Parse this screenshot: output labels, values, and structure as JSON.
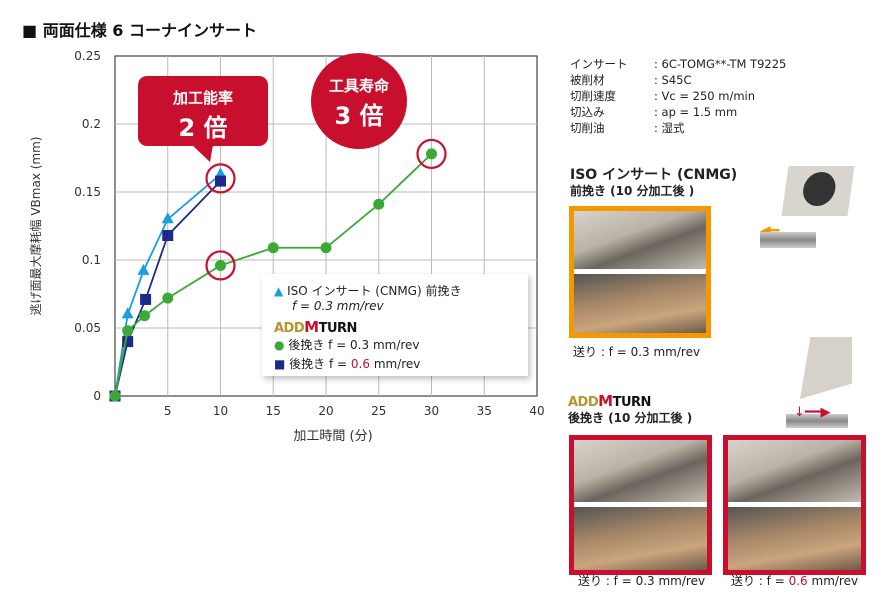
{
  "title": "■ 両面仕様 6 コーナインサート",
  "specs": [
    {
      "label": "インサート",
      "value": ": 6C-TOMG**-TM T9225"
    },
    {
      "label": "被削材",
      "value": ": S45C"
    },
    {
      "label": "切削速度",
      "value": ": Vc = 250 m/min"
    },
    {
      "label": "切込み",
      "value": ": ap = 1.5 mm"
    },
    {
      "label": "切削油",
      "value": ": 湿式"
    }
  ],
  "callouts": {
    "efficiency_label": "加工能率",
    "efficiency_value": "2 倍",
    "life_label": "工具寿命",
    "life_value": "3 倍"
  },
  "logo": {
    "text": "ADDMULTITURN",
    "part1": "ADD",
    "part2": "M",
    "part3": "TURN"
  },
  "legend": {
    "iso_line1": "ISO インサート (CNMG) 前挽き",
    "iso_line2": "f = 0.3 mm/rev",
    "back_prefix": "後挽き f = ",
    "back03_value": "0.3",
    "back06_value": "0.6",
    "unit": " mm/rev"
  },
  "right": {
    "iso_title": "ISO インサート (CNMG)",
    "iso_sub": "前挽き (10 分加工後 )",
    "iso_caption": "送り : f = 0.3 mm/rev",
    "add_sub": "後挽き (10 分加工後 )",
    "cap1": "送り : f = 0.3 mm/rev",
    "cap2_prefix": "送り : f = ",
    "cap2_value": "0.6",
    "cap2_unit": " mm/rev"
  },
  "colors": {
    "iso": "#1a9ee0",
    "back03": "#3aaa35",
    "back06": "#1d2a8a",
    "accent": "#c8102e",
    "photo_border": "#f39800"
  },
  "chart_data": {
    "type": "line",
    "xlabel": "加工時間 (分)",
    "ylabel": "逃げ面最大摩耗幅 VBmax (mm)",
    "xlim": [
      0,
      40
    ],
    "ylim": [
      0,
      0.25
    ],
    "xticks": [
      "5",
      "10",
      "15",
      "20",
      "25",
      "30",
      "35",
      "40"
    ],
    "yticks": [
      "0",
      "0.05",
      "0.1",
      "0.15",
      "0.2",
      "0.25"
    ],
    "grid": true,
    "legend_position": "bottom-right",
    "series": [
      {
        "name": "ISO インサート (CNMG) 前挽き f = 0.3 mm/rev",
        "marker": "triangle",
        "x": [
          0,
          1.2,
          2.7,
          5,
          10
        ],
        "y": [
          0,
          0.06,
          0.092,
          0.13,
          0.163
        ]
      },
      {
        "name": "後挽き f = 0.6 mm/rev",
        "marker": "square",
        "x": [
          0,
          1.2,
          2.9,
          5,
          10
        ],
        "y": [
          0,
          0.04,
          0.071,
          0.118,
          0.158
        ]
      },
      {
        "name": "後挽き f = 0.3 mm/rev",
        "marker": "circle",
        "x": [
          0,
          1.2,
          2.8,
          5,
          10,
          15,
          20,
          25,
          30
        ],
        "y": [
          0,
          0.048,
          0.059,
          0.072,
          0.096,
          0.109,
          0.109,
          0.141,
          0.178
        ]
      }
    ],
    "highlighted_points": [
      {
        "x": 10,
        "y": 0.16
      },
      {
        "x": 10,
        "y": 0.096
      },
      {
        "x": 30,
        "y": 0.178
      }
    ]
  }
}
